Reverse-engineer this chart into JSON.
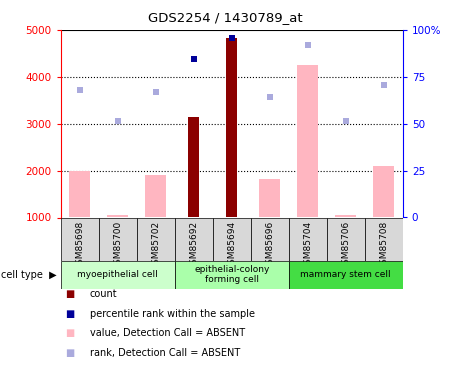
{
  "title": "GDS2254 / 1430789_at",
  "samples": [
    "GSM85698",
    "GSM85700",
    "GSM85702",
    "GSM85692",
    "GSM85694",
    "GSM85696",
    "GSM85704",
    "GSM85706",
    "GSM85708"
  ],
  "count_values": [
    null,
    null,
    null,
    3150,
    4820,
    null,
    null,
    null,
    null
  ],
  "percentile_values": [
    null,
    null,
    null,
    4380,
    4820,
    null,
    null,
    null,
    null
  ],
  "absent_value_bars": [
    2000,
    1050,
    1900,
    null,
    null,
    1820,
    4250,
    1050,
    2100
  ],
  "absent_rank_dots": [
    3720,
    3050,
    3670,
    null,
    null,
    3580,
    4680,
    3050,
    3820
  ],
  "cell_type_groups": [
    {
      "label": "myoepithelial cell",
      "start": 0,
      "end": 3,
      "color": "#ccffcc"
    },
    {
      "label": "epithelial-colony\nforming cell",
      "start": 3,
      "end": 6,
      "color": "#aaffaa"
    },
    {
      "label": "mammary stem cell",
      "start": 6,
      "end": 9,
      "color": "#44dd44"
    }
  ],
  "ylim": [
    1000,
    5000
  ],
  "y2lim": [
    0,
    100
  ],
  "yticks": [
    1000,
    2000,
    3000,
    4000,
    5000
  ],
  "ytick_labels": [
    "1000",
    "2000",
    "3000",
    "4000",
    "5000"
  ],
  "y2ticks": [
    0,
    25,
    50,
    75,
    100
  ],
  "y2tick_labels": [
    "0",
    "25",
    "50",
    "75",
    "100%"
  ],
  "grid_values": [
    2000,
    3000,
    4000
  ],
  "bar_color_count": "#8b0000",
  "bar_color_absent_value": "#ffb6c1",
  "dot_color_percentile": "#000099",
  "dot_color_absent_rank": "#aaaadd",
  "sample_box_color": "#d8d8d8",
  "legend_items": [
    {
      "color": "#8b0000",
      "label": "count"
    },
    {
      "color": "#000099",
      "label": "percentile rank within the sample"
    },
    {
      "color": "#ffb6c1",
      "label": "value, Detection Call = ABSENT"
    },
    {
      "color": "#aaaadd",
      "label": "rank, Detection Call = ABSENT"
    }
  ]
}
